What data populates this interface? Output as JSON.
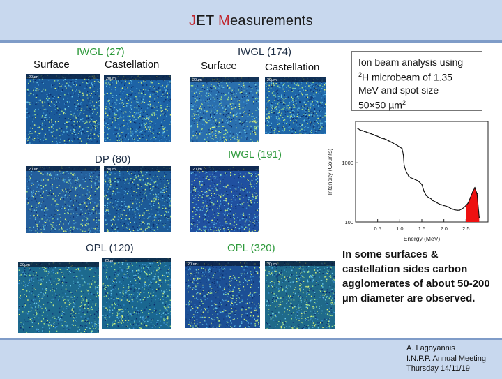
{
  "title": {
    "first_letter": "J",
    "part_a": "ET ",
    "highlight": "M",
    "part_b": "easurements"
  },
  "samples": {
    "iwgl27": {
      "name": "IWGL (27)",
      "left": "Surface",
      "right": "Castellation"
    },
    "iwgl174": {
      "name": "IWGL (174)",
      "left": "Surface",
      "right": "Castellation"
    },
    "dp80": {
      "name": "DP (80)"
    },
    "iwgl191": {
      "name": "IWGL (191)"
    },
    "opl120": {
      "name": "OPL (120)"
    },
    "opl320": {
      "name": "OPL (320)"
    }
  },
  "sem_images": [
    {
      "id": "img-iwgl27-surface",
      "bar": "20µm",
      "tone": "#1a5a9a"
    },
    {
      "id": "img-iwgl27-castellation",
      "bar": "20µm",
      "tone": "#1d63a6"
    },
    {
      "id": "img-iwgl174-surface",
      "bar": "20µm",
      "tone": "#2a6fae"
    },
    {
      "id": "img-iwgl174-castellation",
      "bar": "20µm",
      "tone": "#1f67a8"
    },
    {
      "id": "img-dp80-a",
      "bar": "20µm",
      "tone": "#245f9c"
    },
    {
      "id": "img-dp80-b",
      "bar": "20µm",
      "tone": "#1c5a97"
    },
    {
      "id": "img-iwgl191",
      "bar": "20µm",
      "tone": "#2050a0"
    },
    {
      "id": "img-opl120-a",
      "bar": "20µm",
      "tone": "#1d6a8e"
    },
    {
      "id": "img-opl120-b",
      "bar": "20µm",
      "tone": "#1a6790"
    },
    {
      "id": "img-opl320-a",
      "bar": "20µm",
      "tone": "#1c4f95"
    },
    {
      "id": "img-opl320-b",
      "bar": "20µm",
      "tone": "#1f6a8a"
    }
  ],
  "ion_beam_box": {
    "line1": "Ion beam analysis using",
    "line2_sup": "2",
    "line2": "H microbeam of 1.35",
    "line3": "MeV and spot size",
    "line4": "50×50 µm",
    "line4_sup": "2"
  },
  "observation": "In some surfaces & castellation sides carbon agglomerates of about 50-200 µm diameter are observed.",
  "credit": {
    "line1": "A. Lagoyannis",
    "line2": "I.N.P.P. Annual Meeting",
    "line3": "Thursday 14/11/19"
  },
  "colors": {
    "accent_red": "#c0262d",
    "label_green": "#2e9a3c",
    "spectrum_fill": "#ee1111",
    "header_bg": "#c8d8ee"
  },
  "chart_data": {
    "type": "line",
    "xlabel": "Energy (MeV)",
    "ylabel": "Intensity (Counts)",
    "xlim": [
      0.0,
      3.0
    ],
    "ylim": [
      100,
      5000
    ],
    "y_scale": "log",
    "xticks": [
      0.5,
      1.0,
      1.5,
      2.0,
      2.5
    ],
    "yticks": [
      100,
      1000
    ],
    "series": [
      {
        "x": [
          0.05,
          0.1,
          0.15,
          0.2,
          0.25,
          0.3,
          0.35,
          0.4,
          0.45,
          0.5,
          0.55,
          0.6,
          0.65,
          0.7,
          0.75,
          0.8,
          0.85,
          0.9,
          0.95,
          1.0,
          1.05,
          1.08,
          1.1,
          1.15,
          1.2,
          1.25,
          1.3,
          1.35,
          1.4,
          1.45,
          1.5,
          1.55,
          1.6,
          1.65,
          1.7,
          1.75,
          1.8,
          1.85,
          1.9,
          1.95,
          2.0,
          2.05,
          2.1,
          2.15,
          2.2,
          2.25,
          2.3,
          2.35,
          2.4,
          2.45,
          2.5,
          2.55,
          2.6,
          2.65,
          2.7,
          2.75,
          2.8
        ],
        "y": [
          3800,
          3600,
          3500,
          3400,
          3300,
          3200,
          3100,
          3000,
          2900,
          2800,
          2700,
          2600,
          2550,
          2450,
          2350,
          2250,
          2150,
          2050,
          1950,
          1850,
          1750,
          1400,
          900,
          700,
          600,
          560,
          540,
          520,
          500,
          470,
          430,
          330,
          280,
          260,
          250,
          230,
          220,
          210,
          200,
          195,
          190,
          185,
          180,
          170,
          165,
          160,
          158,
          158,
          165,
          175,
          190,
          210,
          260,
          320,
          380,
          300,
          120
        ]
      }
    ],
    "highlight_region": {
      "x_from": 2.5,
      "x_to": 2.8,
      "color": "#ee1111"
    }
  }
}
